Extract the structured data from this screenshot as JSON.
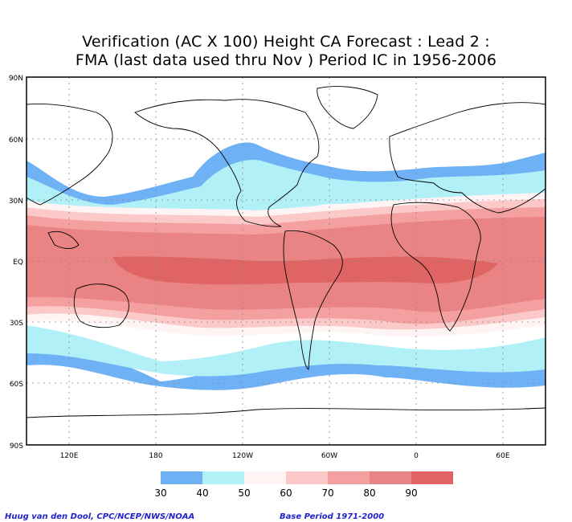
{
  "title_line1": "Verification (AC X 100) Height CA Forecast : Lead 2 :",
  "title_line2": "FMA (last data used thru Nov ) Period IC in 1956-2006",
  "lat_labels": [
    "90N",
    "60N",
    "30N",
    "EQ",
    "30S",
    "60S",
    "90S"
  ],
  "lon_labels": [
    "120E",
    "180",
    "120W",
    "60W",
    "0",
    "60E"
  ],
  "colorbar": {
    "ticks": [
      "30",
      "40",
      "50",
      "60",
      "70",
      "80",
      "90"
    ],
    "colors": [
      "#6fb1f5",
      "#b2f0f8",
      "#fff4f4",
      "#fcc9c9",
      "#f4a0a0",
      "#ea8383",
      "#e06464"
    ]
  },
  "footer_left": "Huug van den Dool, CPC/NCEP/NWS/NOAA",
  "footer_right": "Base Period 1971-2000"
}
